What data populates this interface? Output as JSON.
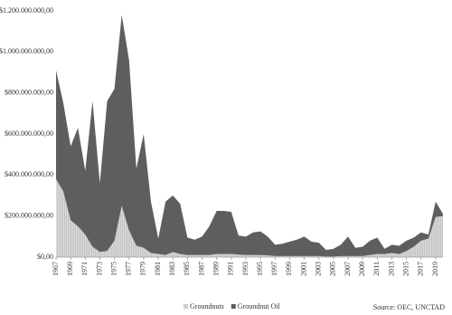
{
  "chart_data": {
    "type": "stacked-area",
    "x": [
      1967,
      1968,
      1969,
      1970,
      1971,
      1972,
      1973,
      1974,
      1975,
      1976,
      1977,
      1978,
      1979,
      1980,
      1981,
      1982,
      1983,
      1984,
      1985,
      1986,
      1987,
      1988,
      1989,
      1990,
      1991,
      1992,
      1993,
      1994,
      1995,
      1996,
      1997,
      1998,
      1999,
      2000,
      2001,
      2002,
      2003,
      2004,
      2005,
      2006,
      2007,
      2008,
      2009,
      2010,
      2011,
      2012,
      2013,
      2014,
      2015,
      2016,
      2017,
      2018,
      2019,
      2020
    ],
    "xlim": [
      1967,
      2020
    ],
    "xticks": [
      1967,
      1969,
      1971,
      1973,
      1975,
      1977,
      1979,
      1981,
      1983,
      1985,
      1987,
      1989,
      1991,
      1993,
      1995,
      1997,
      1999,
      2001,
      2003,
      2005,
      2007,
      2009,
      2011,
      2013,
      2015,
      2017,
      2019
    ],
    "ylim": [
      0,
      1200000000
    ],
    "yticks": [
      {
        "value": 0,
        "label": "$0,00"
      },
      {
        "value": 200000000,
        "label": "$200.000.000,00"
      },
      {
        "value": 400000000,
        "label": "$400.000.000,00"
      },
      {
        "value": 600000000,
        "label": "$600.000.000,00"
      },
      {
        "value": 800000000,
        "label": "$800.000.000,00"
      },
      {
        "value": 1000000000,
        "label": "$1.000.000.000,00"
      },
      {
        "value": 1200000000,
        "label": "$1.200.000.000,00"
      }
    ],
    "series": [
      {
        "name": "Groundnuts",
        "color": "#c4c4c4",
        "values": [
          380000000,
          320000000,
          180000000,
          150000000,
          110000000,
          50000000,
          25000000,
          30000000,
          80000000,
          250000000,
          130000000,
          55000000,
          45000000,
          20000000,
          15000000,
          10000000,
          25000000,
          15000000,
          10000000,
          10000000,
          10000000,
          10000000,
          15000000,
          15000000,
          15000000,
          12000000,
          10000000,
          10000000,
          10000000,
          8000000,
          5000000,
          5000000,
          5000000,
          5000000,
          5000000,
          5000000,
          5000000,
          3000000,
          3000000,
          5000000,
          5000000,
          5000000,
          5000000,
          10000000,
          15000000,
          15000000,
          20000000,
          15000000,
          30000000,
          50000000,
          80000000,
          90000000,
          195000000,
          200000000
        ]
      },
      {
        "name": "Groundnut Oil",
        "color": "#5e5e5e",
        "values": [
          530000000,
          430000000,
          360000000,
          480000000,
          310000000,
          710000000,
          335000000,
          730000000,
          740000000,
          930000000,
          830000000,
          375000000,
          555000000,
          250000000,
          75000000,
          260000000,
          275000000,
          245000000,
          85000000,
          75000000,
          90000000,
          140000000,
          210000000,
          210000000,
          205000000,
          93000000,
          90000000,
          110000000,
          115000000,
          92000000,
          55000000,
          60000000,
          70000000,
          80000000,
          95000000,
          70000000,
          65000000,
          32000000,
          37000000,
          55000000,
          95000000,
          40000000,
          45000000,
          70000000,
          80000000,
          25000000,
          40000000,
          40000000,
          50000000,
          45000000,
          40000000,
          20000000,
          75000000,
          10000000
        ]
      }
    ],
    "source": "Source: OEC, UNCTAD"
  }
}
